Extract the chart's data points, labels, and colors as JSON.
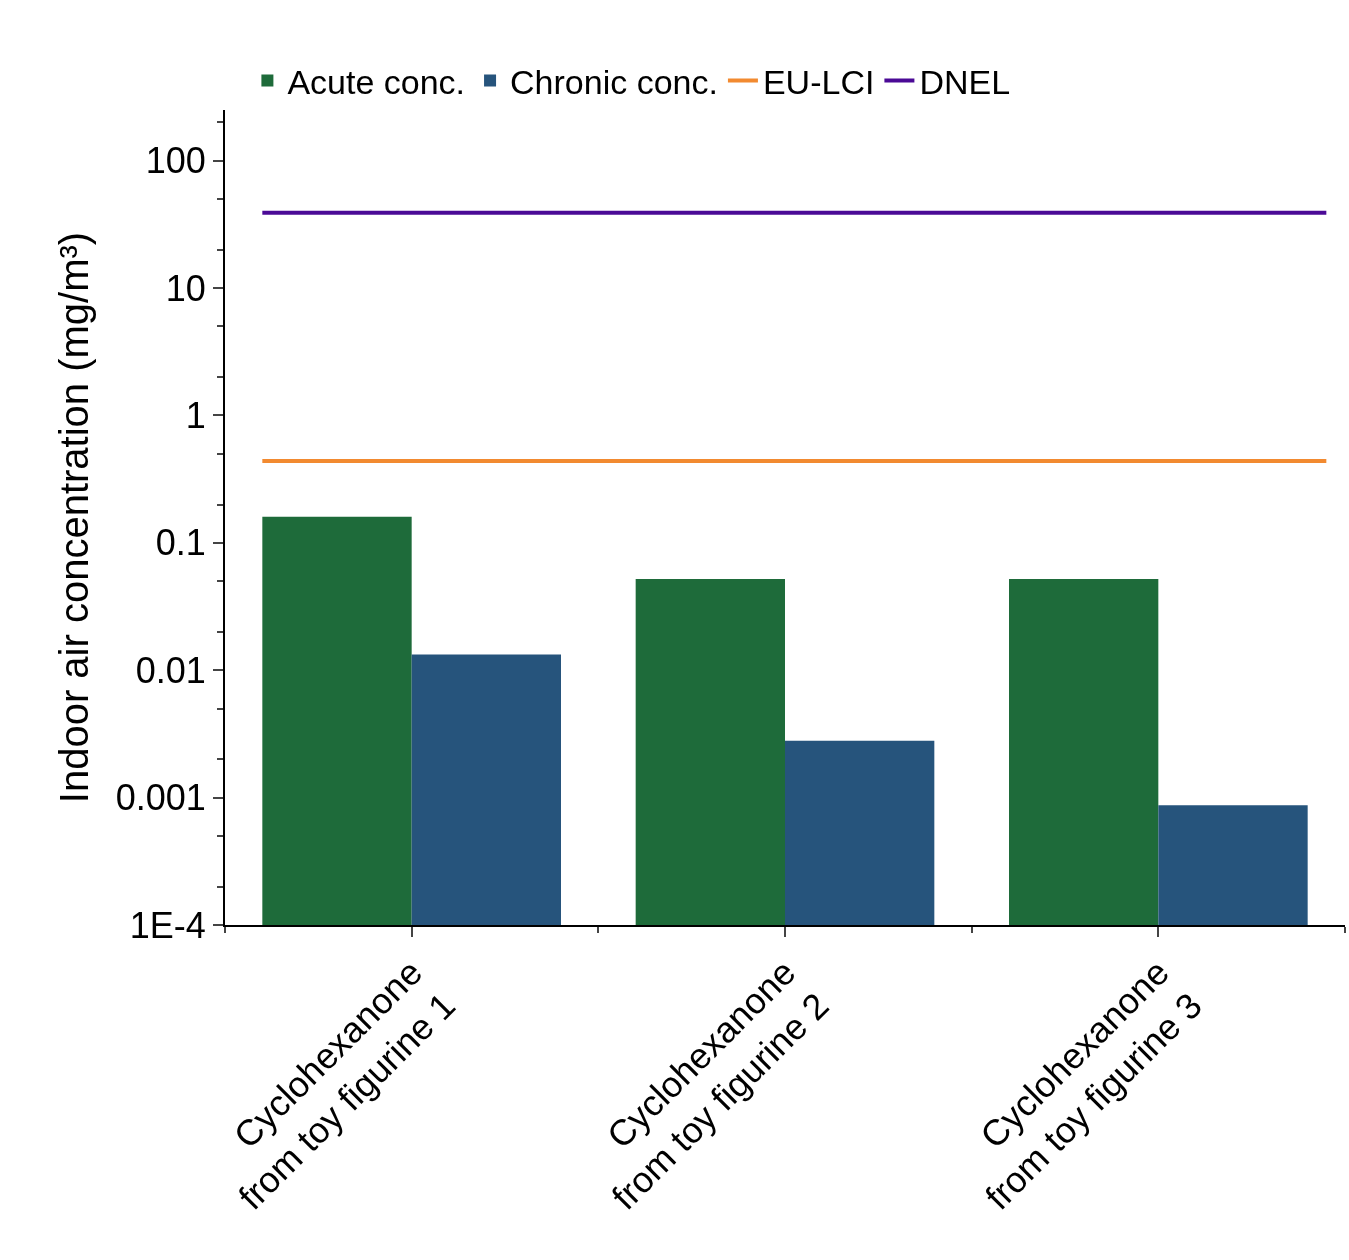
{
  "chart_data": {
    "type": "bar",
    "ylabel": "Indoor air concentration (mg/m³)",
    "categories": [
      "Cyclohexanone\nfrom toy figurine 1",
      "Cyclohexanone\nfrom toy figurine 2",
      "Cyclohexanone\nfrom toy figurine 3"
    ],
    "series": [
      {
        "name": "Acute conc.",
        "color": "#1e6b3a",
        "values": [
          0.16,
          0.052,
          0.052
        ]
      },
      {
        "name": "Chronic conc.",
        "color": "#26547c",
        "values": [
          0.0133,
          0.0028,
          0.00087
        ]
      }
    ],
    "ref_lines": [
      {
        "axis": "y",
        "value": 0.44,
        "label": "EU-LCI",
        "color": "#f28a30"
      },
      {
        "axis": "y",
        "value": 39,
        "label": "DNEL",
        "color": "#4b0a96"
      }
    ],
    "log": true,
    "ylim": [
      0.0001,
      250
    ],
    "yticks": [
      {
        "value": 0.0001,
        "label": "1E-4"
      },
      0.001,
      0.01,
      0.1,
      1,
      10,
      100
    ],
    "legend": "top"
  }
}
